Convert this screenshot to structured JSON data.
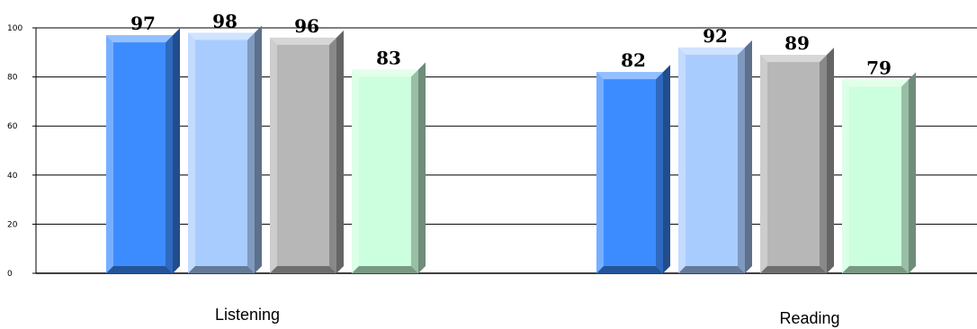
{
  "chart_data": {
    "type": "bar",
    "categories": [
      "Listening",
      "Reading"
    ],
    "series": [
      {
        "values": [
          97,
          82
        ],
        "color": "#3d8cff"
      },
      {
        "values": [
          98,
          92
        ],
        "color": "#a9ccff"
      },
      {
        "values": [
          96,
          89
        ],
        "color": "#b7b7b7"
      },
      {
        "values": [
          83,
          79
        ],
        "color": "#ccffdd"
      }
    ],
    "y_ticks": [
      "0",
      "20",
      "40",
      "60",
      "80",
      "100"
    ],
    "ylim": [
      0,
      100
    ],
    "grid": true,
    "data_labels": true,
    "legend": "none",
    "style": "3d-bars"
  }
}
